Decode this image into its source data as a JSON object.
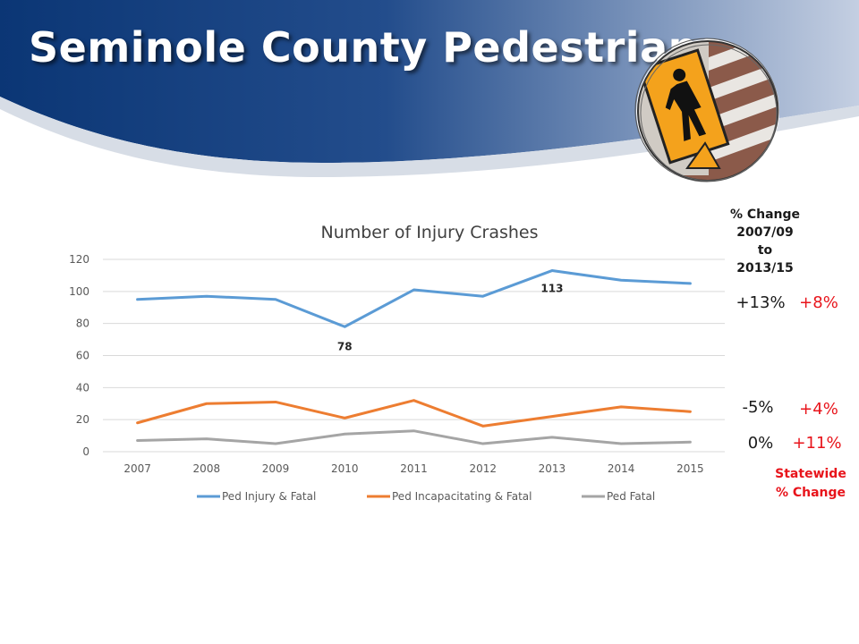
{
  "slide": {
    "title": "Seminole County Pedestrians"
  },
  "change_header": [
    "% Change",
    "2007/09",
    "to",
    "2013/15"
  ],
  "pct_changes": [
    {
      "county": "+13%",
      "statewide": "+8%"
    },
    {
      "county": "-5%",
      "statewide": "+4%"
    },
    {
      "county": "0%",
      "statewide": "+11%"
    }
  ],
  "statewide_label": [
    "Statewide",
    "% Change"
  ],
  "colors": {
    "banner_dark": "#0d3a78",
    "banner_light": "#b9c6dc",
    "series_blue": "#5b9bd5",
    "series_orange": "#ed7d31",
    "series_gray": "#a5a5a5",
    "statewide_red": "#e8141b"
  },
  "icons": {
    "logo": "pedestrian-crossing-sign-icon"
  },
  "chart_data": {
    "type": "line",
    "title": "Number of Injury Crashes",
    "xlabel": "",
    "ylabel": "",
    "categories": [
      "2007",
      "2008",
      "2009",
      "2010",
      "2011",
      "2012",
      "2013",
      "2014",
      "2015"
    ],
    "ylim": [
      0,
      120
    ],
    "yticks": [
      0,
      20,
      40,
      60,
      80,
      100,
      120
    ],
    "grid": true,
    "legend": "bottom",
    "series": [
      {
        "name": "Ped Injury & Fatal",
        "color": "#5b9bd5",
        "values": [
          95,
          97,
          95,
          78,
          101,
          97,
          113,
          107,
          105
        ]
      },
      {
        "name": "Ped Incapacitating & Fatal",
        "color": "#ed7d31",
        "values": [
          18,
          30,
          31,
          21,
          32,
          16,
          22,
          28,
          25
        ]
      },
      {
        "name": "Ped Fatal",
        "color": "#a5a5a5",
        "values": [
          7,
          8,
          5,
          11,
          13,
          5,
          9,
          5,
          6
        ]
      }
    ],
    "annotations": [
      {
        "series": 0,
        "index": 3,
        "text": "78"
      },
      {
        "series": 0,
        "index": 6,
        "text": "113"
      }
    ]
  }
}
